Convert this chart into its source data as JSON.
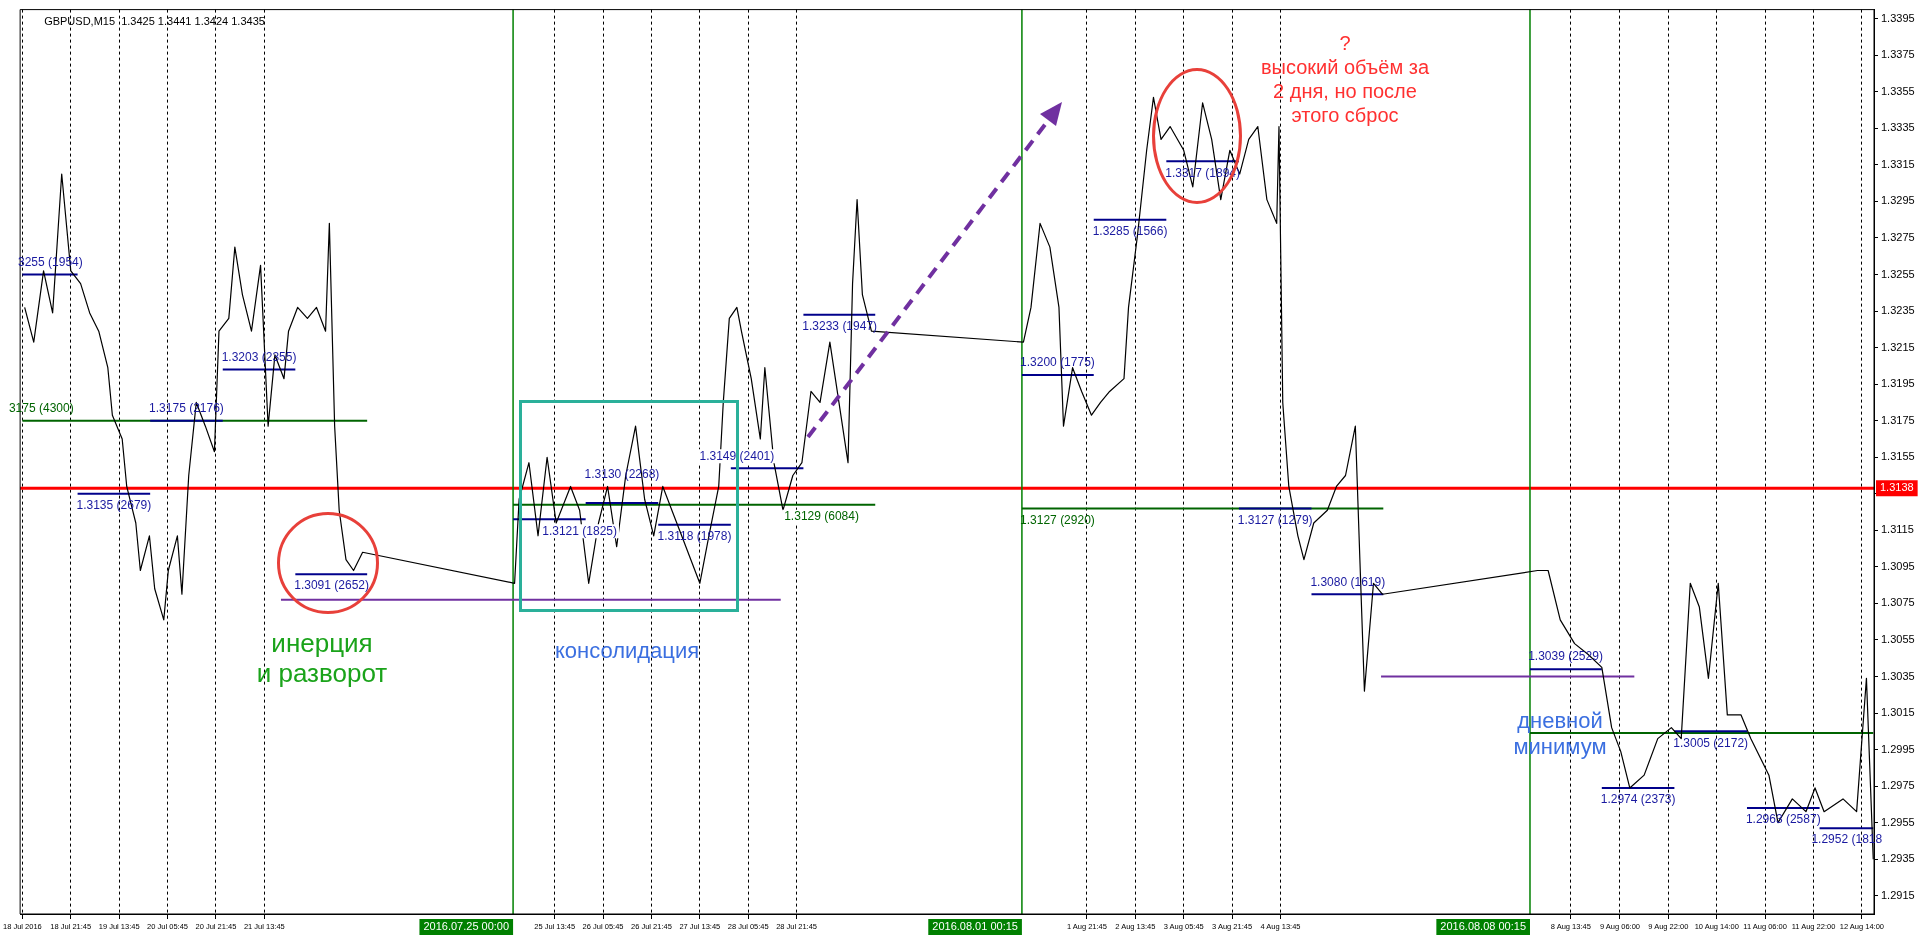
{
  "chart_data": {
    "type": "line",
    "title": "GBPUSD,M15  1.3425 1.3441 1.3424 1.3435",
    "xlim": [
      "2016-07-18T05:00",
      "2016-08-12T18:00"
    ],
    "ylim": [
      1.2905,
      1.34
    ],
    "xticks": [
      {
        "value": "2016-07-18T05:45",
        "label": "18 Jul 2016"
      },
      {
        "value": "2016-07-18T21:45",
        "label": "18 Jul 21:45"
      },
      {
        "value": "2016-07-19T13:45",
        "label": "19 Jul 13:45"
      },
      {
        "value": "2016-07-20T05:45",
        "label": "20 Jul 05:45"
      },
      {
        "value": "2016-07-20T21:45",
        "label": "20 Jul 21:45"
      },
      {
        "value": "2016-07-21T13:45",
        "label": "21 Jul 13:45"
      },
      {
        "value": "2016-07-25T13:45",
        "label": "25 Jul 13:45"
      },
      {
        "value": "2016-07-26T05:45",
        "label": "26 Jul 05:45"
      },
      {
        "value": "2016-07-26T21:45",
        "label": "26 Jul 21:45"
      },
      {
        "value": "2016-07-27T13:45",
        "label": "27 Jul 13:45"
      },
      {
        "value": "2016-07-28T05:45",
        "label": "28 Jul 05:45"
      },
      {
        "value": "2016-07-28T21:45",
        "label": "28 Jul 21:45"
      },
      {
        "value": "2016-08-01T21:45",
        "label": "1 Aug 21:45"
      },
      {
        "value": "2016-08-02T13:45",
        "label": "2 Aug 13:45"
      },
      {
        "value": "2016-08-03T05:45",
        "label": "3 Aug 05:45"
      },
      {
        "value": "2016-08-03T21:45",
        "label": "3 Aug 21:45"
      },
      {
        "value": "2016-08-04T13:45",
        "label": "4 Aug 13:45"
      },
      {
        "value": "2016-08-08T13:45",
        "label": "8 Aug 13:45"
      },
      {
        "value": "2016-08-09T06:00",
        "label": "9 Aug 06:00"
      },
      {
        "value": "2016-08-09T22:00",
        "label": "9 Aug 22:00"
      },
      {
        "value": "2016-08-10T14:00",
        "label": "10 Aug 14:00"
      },
      {
        "value": "2016-08-11T06:00",
        "label": "11 Aug 06:00"
      },
      {
        "value": "2016-08-11T22:00",
        "label": "11 Aug 22:00"
      },
      {
        "value": "2016-08-12T14:00",
        "label": "12 Aug 14:00"
      }
    ],
    "yticks": [
      1.2915,
      1.2935,
      1.2955,
      1.2975,
      1.2995,
      1.3015,
      1.3035,
      1.3055,
      1.3075,
      1.3095,
      1.3115,
      {
        "value": 1.3135,
        "label": null
      },
      1.3155,
      1.3175,
      1.3195,
      1.3215,
      1.3235,
      1.3255,
      1.3275,
      1.3295,
      1.3315,
      1.3335,
      1.3355,
      1.3375,
      1.3395
    ],
    "grid": "x",
    "legend": false,
    "marker": "none",
    "series": [
      {
        "color": "#000000",
        "x": [
          "2016-07-18T06:30",
          "2016-07-18T09:30",
          "2016-07-18T12:45",
          "2016-07-18T15:45",
          "2016-07-18T18:45",
          "2016-07-18T21:45",
          "2016-07-19T01:00",
          "2016-07-19T04:00",
          "2016-07-19T07:00",
          "2016-07-19T10:00",
          "2016-07-19T11:30",
          "2016-07-19T14:45",
          "2016-07-19T16:15",
          "2016-07-19T19:15",
          "2016-07-19T20:45",
          "2016-07-19T23:45",
          "2016-07-20T01:30",
          "2016-07-20T04:30",
          "2016-07-20T06:00",
          "2016-07-20T09:00",
          "2016-07-20T10:30",
          "2016-07-20T12:45",
          "2016-07-20T15:15",
          "2016-07-20T18:15",
          "2016-07-20T21:15",
          "2016-07-20T22:45",
          "2016-07-21T02:00",
          "2016-07-21T04:00",
          "2016-07-21T06:30",
          "2016-07-21T09:30",
          "2016-07-21T12:30",
          "2016-07-21T15:00",
          "2016-07-21T17:15",
          "2016-07-21T20:15",
          "2016-07-21T21:45",
          "2016-07-22T00:45",
          "2016-07-22T04:00",
          "2016-07-22T07:00",
          "2016-07-22T10:00",
          "2016-07-22T11:15",
          "2016-07-22T13:00",
          "2016-07-22T14:30",
          "2016-07-22T16:45",
          "2016-07-22T19:15",
          "2016-07-22T22:15",
          "2016-07-25T00:30",
          "2016-07-25T02:00",
          "2016-07-25T05:15",
          "2016-07-25T08:15",
          "2016-07-25T11:15",
          "2016-07-25T14:15",
          "2016-07-25T19:00",
          "2016-07-25T22:00",
          "2016-07-26T01:00",
          "2016-07-26T04:15",
          "2016-07-26T07:15",
          "2016-07-26T10:15",
          "2016-07-26T13:15",
          "2016-07-26T16:30",
          "2016-07-26T19:30",
          "2016-07-26T22:30",
          "2016-07-27T01:30",
          "2016-07-27T04:30",
          "2016-07-27T07:45",
          "2016-07-27T10:45",
          "2016-07-27T13:45",
          "2016-07-27T16:45",
          "2016-07-27T20:00",
          "2016-07-27T21:30",
          "2016-07-27T23:30",
          "2016-07-28T02:00",
          "2016-07-28T03:30",
          "2016-07-28T06:45",
          "2016-07-28T09:45",
          "2016-07-28T11:15",
          "2016-07-28T14:15",
          "2016-07-28T17:15",
          "2016-07-28T20:30",
          "2016-07-28T23:30",
          "2016-07-29T02:30",
          "2016-07-29T05:30",
          "2016-07-29T08:45",
          "2016-07-29T11:45",
          "2016-07-29T14:45",
          "2016-07-29T16:15",
          "2016-07-29T17:45",
          "2016-07-29T19:30",
          "2016-07-29T22:30",
          "2016-08-01T00:45",
          "2016-08-01T03:15",
          "2016-08-01T06:15",
          "2016-08-01T09:30",
          "2016-08-01T12:30",
          "2016-08-01T14:00",
          "2016-08-01T17:00",
          "2016-08-01T20:00",
          "2016-08-01T23:15",
          "2016-08-02T02:15",
          "2016-08-02T05:15",
          "2016-08-02T10:00",
          "2016-08-02T11:30",
          "2016-08-02T14:30",
          "2016-08-02T17:30",
          "2016-08-02T19:45",
          "2016-08-02T22:15",
          "2016-08-03T01:15",
          "2016-08-03T05:45",
          "2016-08-03T08:45",
          "2016-08-03T12:00",
          "2016-08-03T15:00",
          "2016-08-03T18:00",
          "2016-08-03T21:00",
          "2016-08-04T00:15",
          "2016-08-04T03:15",
          "2016-08-04T06:15",
          "2016-08-04T09:15",
          "2016-08-04T12:30",
          "2016-08-04T13:15",
          "2016-08-04T14:30",
          "2016-08-04T16:30",
          "2016-08-04T19:30",
          "2016-08-04T21:30",
          "2016-08-05T00:45",
          "2016-08-05T05:15",
          "2016-08-05T08:15",
          "2016-08-05T11:15",
          "2016-08-05T14:30",
          "2016-08-05T16:00",
          "2016-08-05T17:30",
          "2016-08-05T20:30",
          "2016-08-05T23:30",
          "2016-08-08T02:45",
          "2016-08-08T06:15",
          "2016-08-08T10:15",
          "2016-08-08T15:00",
          "2016-08-08T19:30",
          "2016-08-09T00:00",
          "2016-08-09T03:15",
          "2016-08-09T06:15",
          "2016-08-09T09:15",
          "2016-08-09T14:00",
          "2016-08-09T18:30",
          "2016-08-09T23:00",
          "2016-08-10T02:15",
          "2016-08-10T05:15",
          "2016-08-10T08:15",
          "2016-08-10T11:15",
          "2016-08-10T14:30",
          "2016-08-10T17:30",
          "2016-08-10T22:00",
          "2016-08-11T01:15",
          "2016-08-11T07:15",
          "2016-08-11T10:15",
          "2016-08-11T15:00",
          "2016-08-11T19:30",
          "2016-08-11T22:30",
          "2016-08-12T01:30",
          "2016-08-12T07:45",
          "2016-08-12T12:15",
          "2016-08-12T15:30",
          "2016-08-12T17:45"
        ],
        "values": [
          1.3237,
          1.3218,
          1.3257,
          1.3234,
          1.331,
          1.3257,
          1.325,
          1.3234,
          1.3224,
          1.3204,
          1.3178,
          1.3165,
          1.3139,
          1.3119,
          1.3093,
          1.3112,
          1.3083,
          1.3066,
          1.3093,
          1.3112,
          1.308,
          1.3145,
          1.3185,
          1.3172,
          1.3158,
          1.3224,
          1.3231,
          1.327,
          1.3244,
          1.3224,
          1.326,
          1.3172,
          1.3211,
          1.3198,
          1.3224,
          1.3237,
          1.3231,
          1.3237,
          1.3224,
          1.3283,
          1.3172,
          1.3126,
          1.3099,
          1.3093,
          1.3103,
          1.3086,
          1.3132,
          1.3152,
          1.3112,
          1.3155,
          1.3119,
          1.3139,
          1.3126,
          1.3086,
          1.3119,
          1.3139,
          1.3106,
          1.3145,
          1.3172,
          1.3132,
          1.3112,
          1.3139,
          1.3126,
          1.3112,
          1.3099,
          1.3086,
          1.3112,
          1.3139,
          1.3185,
          1.3231,
          1.3237,
          1.3224,
          1.3198,
          1.3165,
          1.3204,
          1.3152,
          1.3126,
          1.3145,
          1.3152,
          1.3191,
          1.3185,
          1.3218,
          1.3185,
          1.3152,
          1.325,
          1.3296,
          1.3244,
          1.3224,
          1.3218,
          1.3237,
          1.3283,
          1.327,
          1.3237,
          1.3172,
          1.3204,
          1.3191,
          1.3178,
          1.3185,
          1.3191,
          1.3198,
          1.3237,
          1.3277,
          1.3323,
          1.3352,
          1.3329,
          1.3336,
          1.3323,
          1.3303,
          1.3349,
          1.3329,
          1.3296,
          1.3323,
          1.331,
          1.3329,
          1.3336,
          1.3296,
          1.3283,
          1.3336,
          1.3185,
          1.3139,
          1.3112,
          1.3099,
          1.3119,
          1.3126,
          1.3139,
          1.3145,
          1.3172,
          1.3099,
          1.3027,
          1.3086,
          1.308,
          1.3093,
          1.3093,
          1.3066,
          1.3053,
          1.3047,
          1.304,
          1.3007,
          1.2994,
          1.2974,
          1.2981,
          1.3001,
          1.3007,
          1.3001,
          1.3086,
          1.3073,
          1.3034,
          1.3086,
          1.3014,
          1.3014,
          1.3001,
          1.2981,
          1.2955,
          1.2968,
          1.2961,
          1.2974,
          1.2961,
          1.2968,
          1.2961,
          1.3034,
          1.2935
        ]
      },
      {
        "color": "#00008b",
        "x": [
          "2016-07-18T05:45",
          "2016-07-19T00:00"
        ],
        "values": [
          1.3255,
          1.3255
        ]
      },
      {
        "color": "#00008b",
        "x": [
          "2016-07-19T00:00",
          "2016-07-20T00:00"
        ],
        "values": [
          1.3135,
          1.3135
        ]
      },
      {
        "color": "#00008b",
        "x": [
          "2016-07-20T00:00",
          "2016-07-21T00:00"
        ],
        "values": [
          1.3175,
          1.3175
        ]
      },
      {
        "color": "#00008b",
        "x": [
          "2016-07-21T00:00",
          "2016-07-22T00:00"
        ],
        "values": [
          1.3203,
          1.3203
        ]
      },
      {
        "color": "#00008b",
        "x": [
          "2016-07-22T00:00",
          "2016-07-22T23:45"
        ],
        "values": [
          1.3091,
          1.3091
        ]
      },
      {
        "color": "#00008b",
        "x": [
          "2016-07-25T00:00",
          "2016-07-26T00:00"
        ],
        "values": [
          1.3121,
          1.3121
        ]
      },
      {
        "color": "#00008b",
        "x": [
          "2016-07-26T00:00",
          "2016-07-27T00:00"
        ],
        "values": [
          1.313,
          1.313
        ]
      },
      {
        "color": "#00008b",
        "x": [
          "2016-07-27T00:00",
          "2016-07-28T00:00"
        ],
        "values": [
          1.3118,
          1.3118
        ]
      },
      {
        "color": "#00008b",
        "x": [
          "2016-07-28T00:00",
          "2016-07-29T00:00"
        ],
        "values": [
          1.3149,
          1.3149
        ]
      },
      {
        "color": "#00008b",
        "x": [
          "2016-07-29T00:00",
          "2016-07-29T23:45"
        ],
        "values": [
          1.3233,
          1.3233
        ]
      },
      {
        "color": "#00008b",
        "x": [
          "2016-08-01T00:15",
          "2016-08-02T00:00"
        ],
        "values": [
          1.32,
          1.32
        ]
      },
      {
        "color": "#00008b",
        "x": [
          "2016-08-02T00:00",
          "2016-08-03T00:00"
        ],
        "values": [
          1.3285,
          1.3285
        ]
      },
      {
        "color": "#00008b",
        "x": [
          "2016-08-03T00:00",
          "2016-08-04T00:00"
        ],
        "values": [
          1.3317,
          1.3317
        ]
      },
      {
        "color": "#00008b",
        "x": [
          "2016-08-04T00:00",
          "2016-08-05T00:00"
        ],
        "values": [
          1.3127,
          1.3127
        ]
      },
      {
        "color": "#00008b",
        "x": [
          "2016-08-05T00:00",
          "2016-08-05T23:45"
        ],
        "values": [
          1.308,
          1.308
        ]
      },
      {
        "color": "#00008b",
        "x": [
          "2016-08-08T00:15",
          "2016-08-09T00:00"
        ],
        "values": [
          1.3039,
          1.3039
        ]
      },
      {
        "color": "#00008b",
        "x": [
          "2016-08-09T00:00",
          "2016-08-10T00:00"
        ],
        "values": [
          1.2974,
          1.2974
        ]
      },
      {
        "color": "#00008b",
        "x": [
          "2016-08-10T00:00",
          "2016-08-11T00:00"
        ],
        "values": [
          1.3005,
          1.3005
        ]
      },
      {
        "color": "#00008b",
        "x": [
          "2016-08-11T00:00",
          "2016-08-12T00:00"
        ],
        "values": [
          1.2963,
          1.2963
        ]
      },
      {
        "color": "#00008b",
        "x": [
          "2016-08-12T00:00",
          "2016-08-12T17:45"
        ],
        "values": [
          1.2952,
          1.2952
        ]
      },
      {
        "color": "#006400",
        "x": [
          "2016-07-18T05:45",
          "2016-07-22T23:45"
        ],
        "values": [
          1.3175,
          1.3175
        ]
      },
      {
        "color": "#006400",
        "x": [
          "2016-07-25T00:00",
          "2016-07-29T23:45"
        ],
        "values": [
          1.3129,
          1.3129
        ]
      },
      {
        "color": "#006400",
        "x": [
          "2016-08-01T00:15",
          "2016-08-05T23:45"
        ],
        "values": [
          1.3127,
          1.3127
        ]
      },
      {
        "color": "#006400",
        "x": [
          "2016-08-08T00:15",
          "2016-08-12T17:45"
        ],
        "values": [
          1.3004,
          1.3004
        ]
      },
      {
        "color": "#7030a0",
        "x": [
          "2016-07-21T19:15",
          "2016-07-28T16:30"
        ],
        "values": [
          1.3077,
          1.3077
        ]
      },
      {
        "color": "#7030a0",
        "x": [
          "2016-08-05T23:00",
          "2016-08-09T10:45"
        ],
        "values": [
          1.3035,
          1.3035
        ]
      }
    ],
    "ref_lines": [
      {
        "axis": "y",
        "value": 1.3138,
        "label": "1.3138",
        "color": "#ff0000"
      },
      {
        "axis": "x",
        "value": "2016-07-25T00:00",
        "label": "2016.07.25 00:00",
        "color": "#008000"
      },
      {
        "axis": "x",
        "value": "2016-08-01T00:15",
        "label": "2016.08.01 00:15",
        "color": "#008000"
      },
      {
        "axis": "x",
        "value": "2016-08-08T00:15",
        "label": "2016.08.08 00:15",
        "color": "#008000"
      }
    ],
    "annotations": [
      "инерция\nи разворот",
      "консолидация",
      "дневной\nминимум",
      "?\nвысокий объём за\n2 дня, но после\nэтого сброс",
      {
        "text": "3255 (1954)",
        "x": "2016-07-18T15:00",
        "y": 1.3255
      },
      {
        "text": "1.3203 (2355)",
        "x": "2016-07-21T12:00",
        "y": 1.3203
      },
      {
        "text": "1.3175 (2176)",
        "x": "2016-07-20T12:00",
        "y": 1.3175
      },
      {
        "text": "3175 (4300)",
        "x": "2016-07-18T12:00",
        "y": 1.3175
      },
      {
        "text": "1.3129 (6084)",
        "x": "2016-07-29T06:00",
        "y": 1.3129
      },
      {
        "text": "1.3130 (2268)",
        "x": "2016-07-26T12:00",
        "y": 1.313
      },
      {
        "text": "1.3118 (1978)",
        "x": "2016-07-27T12:00",
        "y": 1.3118
      },
      {
        "text": "1.3135 (2679)",
        "x": "2016-07-19T12:00",
        "y": 1.3135
      },
      {
        "text": "1.3091 (2652)",
        "x": "2016-07-22T12:00",
        "y": 1.3091
      },
      {
        "text": "1.3121 (1825)",
        "x": "2016-07-25T22:00",
        "y": 1.3121
      },
      {
        "text": "1.3149 (2401)",
        "x": "2016-07-28T02:00",
        "y": 1.3149
      },
      {
        "text": "1.3233 (1947)",
        "x": "2016-07-29T12:00",
        "y": 1.3233
      },
      {
        "text": "1.3127 (2920)",
        "x": "2016-08-01T12:00",
        "y": 1.3127
      },
      {
        "text": "1.3200 (1775)",
        "x": "2016-08-01T12:00",
        "y": 1.32
      },
      {
        "text": "1.3285 (1566)",
        "x": "2016-08-02T12:00",
        "y": 1.3285
      },
      {
        "text": "1.3317 (1894)",
        "x": "2016-08-03T12:00",
        "y": 1.3317
      },
      {
        "text": "1.3127 (1279)",
        "x": "2016-08-04T12:00",
        "y": 1.3127
      },
      {
        "text": "1.3080 (1619)",
        "x": "2016-08-05T12:00",
        "y": 1.308
      },
      {
        "text": "1.3039 (2529)",
        "x": "2016-08-08T12:00",
        "y": 1.3039
      },
      {
        "text": "1.2974 (2373)",
        "x": "2016-08-09T12:00",
        "y": 1.2974
      },
      {
        "text": "1.3005 (2172)",
        "x": "2016-08-10T12:00",
        "y": 1.3005
      },
      {
        "text": "1.2963 (2587)",
        "x": "2016-08-11T12:00",
        "y": 1.2963
      },
      {
        "text": "1.2952 (1818",
        "x": "2016-08-12T09:00",
        "y": 1.2952
      }
    ]
  }
}
